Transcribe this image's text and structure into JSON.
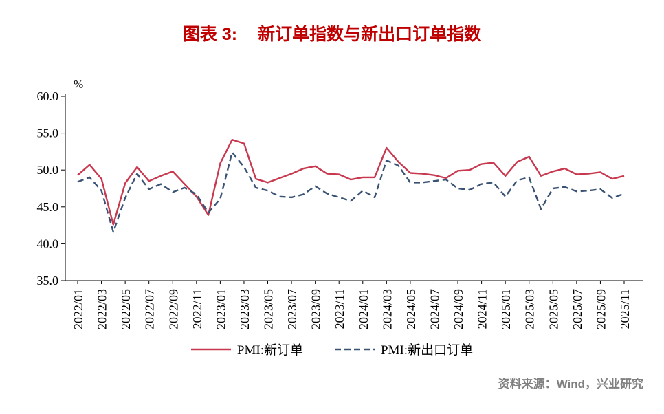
{
  "header": {
    "prefix": "图表 3:",
    "title": "新订单指数与新出口订单指数",
    "color": "#C00000"
  },
  "chart_data": {
    "type": "line",
    "title": "新订单指数与新出口订单指数",
    "unit_label": "%",
    "ylim": [
      35.0,
      60.0
    ],
    "y_ticks": [
      35.0,
      40.0,
      45.0,
      50.0,
      55.0,
      60.0
    ],
    "x_tick_every": 2,
    "grid": false,
    "legend_position": "bottom-center",
    "categories": [
      "2022/01",
      "2022/02",
      "2022/03",
      "2022/04",
      "2022/05",
      "2022/06",
      "2022/07",
      "2022/08",
      "2022/09",
      "2022/10",
      "2022/11",
      "2022/12",
      "2023/01",
      "2023/02",
      "2023/03",
      "2023/04",
      "2023/05",
      "2023/06",
      "2023/07",
      "2023/08",
      "2023/09",
      "2023/10",
      "2023/11",
      "2023/12",
      "2024/01",
      "2024/02",
      "2024/03",
      "2024/04",
      "2024/05",
      "2024/06",
      "2024/07",
      "2024/08",
      "2024/09",
      "2024/10",
      "2024/11",
      "2024/12",
      "2025/01",
      "2025/02",
      "2025/03",
      "2025/04",
      "2025/05",
      "2025/06",
      "2025/07",
      "2025/08",
      "2025/09",
      "2025/10",
      "2025/11"
    ],
    "series": [
      {
        "name": "PMI:新订单",
        "color": "#C8384F",
        "style": "solid",
        "values": [
          49.3,
          50.7,
          48.8,
          42.6,
          48.2,
          50.4,
          48.5,
          49.2,
          49.8,
          48.1,
          46.4,
          43.9,
          50.9,
          54.1,
          53.6,
          48.8,
          48.3,
          48.9,
          49.5,
          50.2,
          50.5,
          49.5,
          49.4,
          48.7,
          49.0,
          49.0,
          53.0,
          51.1,
          49.6,
          49.5,
          49.3,
          48.9,
          49.9,
          50.0,
          50.8,
          51.0,
          49.2,
          51.1,
          51.8,
          49.2,
          49.8,
          50.2,
          49.4,
          49.5,
          49.7,
          48.8,
          49.2
        ]
      },
      {
        "name": "PMI:新出口订单",
        "color": "#3A5374",
        "style": "dashed",
        "values": [
          48.4,
          49.0,
          47.2,
          41.6,
          46.2,
          49.5,
          47.4,
          48.1,
          47.0,
          47.6,
          46.7,
          44.2,
          46.1,
          52.4,
          50.4,
          47.6,
          47.2,
          46.4,
          46.3,
          46.7,
          47.8,
          46.8,
          46.3,
          45.8,
          47.2,
          46.3,
          51.3,
          50.6,
          48.3,
          48.3,
          48.5,
          48.7,
          47.5,
          47.3,
          48.1,
          48.3,
          46.4,
          48.6,
          49.0,
          44.7,
          47.5,
          47.7,
          47.1,
          47.2,
          47.4,
          46.2,
          46.8
        ]
      }
    ]
  },
  "footer": {
    "source": "资料来源：Wind，兴业研究",
    "color": "#808080"
  }
}
